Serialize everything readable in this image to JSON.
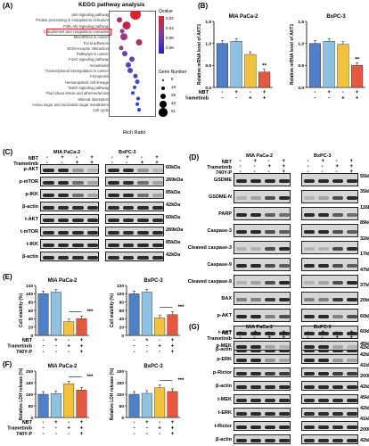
{
  "panels": {
    "A": {
      "letter": "(A)",
      "title": "KEGG pathway analysis",
      "pathways": [
        "p53 signaling pathway",
        "Protein processing in endoplasmic reticulum",
        "PI3K-Akt signaling pathway",
        "Complement and coagulation cascades",
        "MicroRNAs in cancer",
        "Focal adhesion",
        "ECM-receptor interaction",
        "Pathways in cancer",
        "FoxO signaling pathway",
        "Amoebiasis",
        "Transcriptional misregulation in cancer",
        "Ferroptosis",
        "Hematopoietic cell lineage",
        "Notch signaling pathway",
        "Fluid shear stress and atherosclerosis",
        "Mineral absorption",
        "Amino sugar and nucleotide sugar metabolism",
        "Cell cycle"
      ],
      "xlabel": "Rich Ratio",
      "qvalue_title": "Qvalue",
      "qvalue_ticks": [
        "0.02",
        "0.04",
        "0.06",
        "0.08"
      ],
      "gene_number_title": "Gene Number",
      "gene_numbers": [
        "8",
        "19",
        "29",
        "40",
        "51"
      ]
    },
    "B": {
      "letter": "(B)",
      "charts": [
        {
          "title": "MIA PaCa-2",
          "ylabel": "Relative mRNA level of AKT1",
          "values": [
            1.0,
            1.05,
            0.75,
            0.35
          ],
          "sig": "**",
          "yticks": [
            "0.0",
            "0.5",
            "1.0",
            "1.5"
          ]
        },
        {
          "title": "BxPC-3",
          "ylabel": "Relative mRNA level of AKT1",
          "values": [
            1.0,
            1.05,
            0.98,
            0.5
          ],
          "sig": "**",
          "yticks": [
            "0.0",
            "0.5",
            "1.0",
            "1.5"
          ]
        }
      ],
      "rows": [
        {
          "label": "NBT",
          "signs": [
            "-",
            "+",
            "-",
            "+"
          ]
        },
        {
          "label": "Trametinib",
          "signs": [
            "-",
            "-",
            "+",
            "+"
          ]
        }
      ]
    },
    "C": {
      "letter": "(C)",
      "lines": [
        "MIA PaCa-2",
        "BxPC-3"
      ],
      "treat_rows": [
        {
          "label": "NBT",
          "signs": [
            "-",
            "+",
            "-",
            "+"
          ]
        },
        {
          "label": "Trametinib",
          "signs": [
            "-",
            "-",
            "+",
            "+"
          ]
        }
      ],
      "proteins": [
        "p-AKT",
        "p-mTOR",
        "p-IKK",
        "β-actin",
        "t-AKT",
        "t-mTOR",
        "t-IKK",
        "β-actin"
      ],
      "kda": [
        "60kDa",
        "289kDa",
        "85kDa",
        "42kDa",
        "60kDa",
        "289kDa",
        "85kDa",
        "42kDa"
      ]
    },
    "D": {
      "letter": "(D)",
      "lines": [
        "MIA PaCa-2",
        "BxPC-3"
      ],
      "treat_rows": [
        {
          "label": "NBT",
          "signs": [
            "-",
            "+",
            "-",
            "+"
          ]
        },
        {
          "label": "Trametinib",
          "signs": [
            "-",
            "-",
            "+",
            "+"
          ]
        },
        {
          "label": "740Y-P",
          "signs": [
            "-",
            "-",
            "-",
            "+"
          ]
        }
      ],
      "proteins": [
        "GSDME",
        "GSDME-N",
        "PARP",
        "Caspase-3",
        "Cleaved caspase-3",
        "Caspase-9",
        "Cleaved caspase-9",
        "BAX",
        "p-AKT",
        "t-AKT",
        "β-actin"
      ],
      "kda": [
        "55kDa",
        "35kDa",
        "116kDa",
        "89kDa",
        "32kDa",
        "17kDa",
        "47kDa",
        "37kDa",
        "20kDa",
        "60kDa",
        "60kDa",
        "42kDa"
      ]
    },
    "E": {
      "letter": "(E)",
      "charts": [
        {
          "title": "MIA PaCa-2",
          "ylabel": "Cell viability (%)",
          "values": [
            100,
            104,
            33,
            40
          ],
          "sig": "***",
          "yticks": [
            "0",
            "20",
            "40",
            "60",
            "80",
            "100",
            "120"
          ]
        },
        {
          "title": "BxPC-3",
          "ylabel": "Cell viability (%)",
          "values": [
            100,
            104,
            42,
            50
          ],
          "sig": "***",
          "yticks": [
            "0",
            "20",
            "40",
            "60",
            "80",
            "100",
            "120"
          ]
        }
      ],
      "rows": [
        {
          "label": "NBT",
          "signs": [
            "-",
            "+",
            "-",
            "+"
          ]
        },
        {
          "label": "Trametinib",
          "signs": [
            "-",
            "-",
            "+",
            "+"
          ]
        },
        {
          "label": "740Y-P",
          "signs": [
            "-",
            "-",
            "-",
            "+"
          ]
        }
      ]
    },
    "F": {
      "letter": "(F)",
      "charts": [
        {
          "title": "MIA PaCa-2",
          "ylabel": "Relative LDH release (%)",
          "values": [
            100,
            103,
            145,
            118
          ],
          "sig": "***",
          "yticks": [
            "0",
            "50",
            "100",
            "150",
            "200"
          ]
        },
        {
          "title": "BxPC-3",
          "ylabel": "Relative LDH release (%)",
          "values": [
            100,
            104,
            128,
            112
          ],
          "sig": "***",
          "yticks": [
            "0",
            "50",
            "100",
            "150",
            "200"
          ]
        }
      ],
      "rows": [
        {
          "label": "NBT",
          "signs": [
            "-",
            "+",
            "-",
            "+"
          ]
        },
        {
          "label": "Trametinib",
          "signs": [
            "-",
            "-",
            "+",
            "+"
          ]
        },
        {
          "label": "740Y-P",
          "signs": [
            "-",
            "-",
            "-",
            "+"
          ]
        }
      ]
    },
    "G": {
      "letter": "(G)",
      "lines": [
        "MIA PaCa-2",
        "BxPC-3"
      ],
      "treat_rows": [
        {
          "label": "NBT",
          "signs": [
            "-",
            "+",
            "-",
            "+"
          ]
        },
        {
          "label": "Trametinib",
          "signs": [
            "-",
            "-",
            "+",
            "+"
          ]
        }
      ],
      "proteins": [
        "p-MEK",
        "p-ERK",
        "p-Rictor",
        "β-actin",
        "t-MEK",
        "t-ERK",
        "t-Rictor",
        "β-actin"
      ],
      "kda": [
        "45kDa",
        "42kDa",
        "41kDa",
        "200kDa",
        "42kDa",
        "45kDa",
        "42kDa",
        "41kDa",
        "200kDa",
        "42kDa"
      ]
    }
  },
  "colors": {
    "blue": "#4f7fc4",
    "lightblue": "#8fc1e3",
    "yellow": "#f3c23c",
    "red": "#e2593f",
    "highlight": "#e02020"
  }
}
